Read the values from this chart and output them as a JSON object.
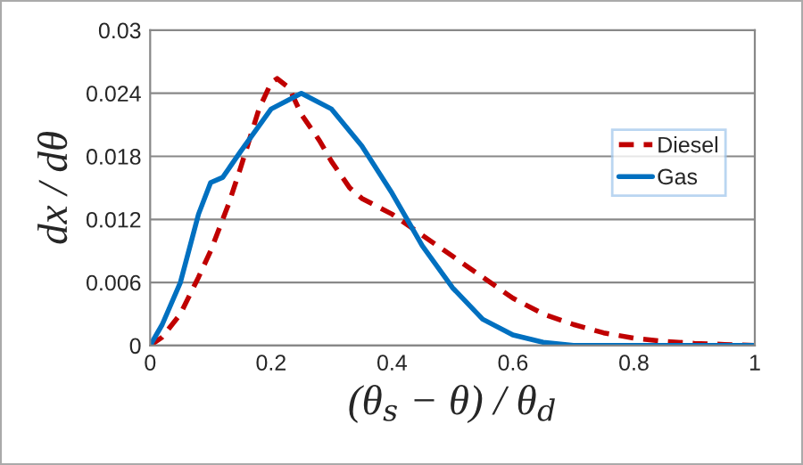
{
  "chart_data": {
    "type": "line",
    "xlabel": "(θ$_{s}$ − θ) / θ$_{d}$",
    "ylabel": "dx / dθ",
    "xlim": [
      0,
      1
    ],
    "ylim": [
      0,
      0.03
    ],
    "xticks": [
      0,
      0.2,
      0.4,
      0.6,
      0.8,
      1
    ],
    "yticks": [
      0,
      0.006,
      0.012,
      0.018,
      0.024,
      0.03
    ],
    "grid": "y",
    "legend": "right",
    "marker": "none",
    "series": [
      {
        "name": "Diesel",
        "color": "#c00000",
        "line_style": "dashed",
        "x": [
          0,
          0.02,
          0.05,
          0.08,
          0.1,
          0.13,
          0.15,
          0.18,
          0.2,
          0.21,
          0.23,
          0.25,
          0.28,
          0.3,
          0.33,
          0.35,
          0.4,
          0.45,
          0.5,
          0.55,
          0.6,
          0.65,
          0.7,
          0.75,
          0.8,
          0.85,
          0.9,
          0.95,
          1
        ],
        "values": [
          0,
          0.0008,
          0.003,
          0.0065,
          0.009,
          0.0135,
          0.017,
          0.0225,
          0.025,
          0.0254,
          0.0245,
          0.022,
          0.0195,
          0.0175,
          0.015,
          0.014,
          0.0125,
          0.0105,
          0.0085,
          0.0065,
          0.0045,
          0.003,
          0.002,
          0.0012,
          0.0007,
          0.0004,
          0.0002,
          0.0001,
          0
        ]
      },
      {
        "name": "Gas",
        "color": "#0070c0",
        "line_style": "solid",
        "x": [
          0,
          0.02,
          0.05,
          0.08,
          0.1,
          0.12,
          0.15,
          0.2,
          0.25,
          0.3,
          0.35,
          0.4,
          0.45,
          0.5,
          0.55,
          0.6,
          0.65,
          0.7,
          0.8,
          0.9,
          1
        ],
        "values": [
          0,
          0.002,
          0.006,
          0.0125,
          0.0155,
          0.016,
          0.0185,
          0.0225,
          0.024,
          0.0225,
          0.019,
          0.0145,
          0.0095,
          0.0055,
          0.0025,
          0.001,
          0.0003,
          0,
          0,
          0,
          0
        ]
      }
    ]
  }
}
